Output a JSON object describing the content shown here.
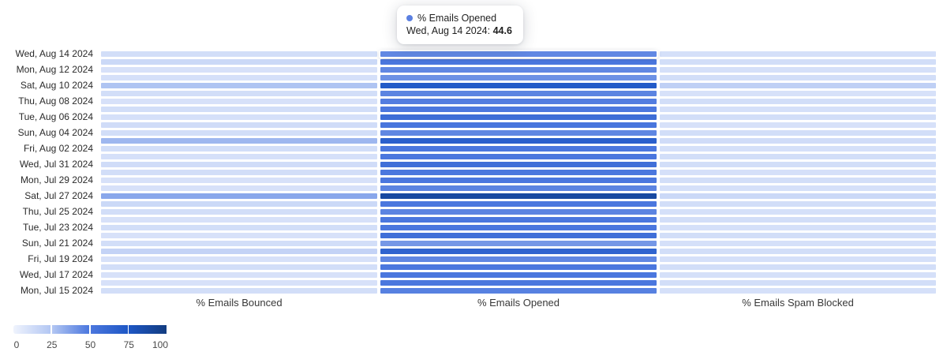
{
  "tooltip": {
    "series_label": "% Emails Opened",
    "row_label": "Wed, Aug 14 2024: ",
    "value": "44.6",
    "dot_color": "#5b80e1"
  },
  "chart_data": {
    "type": "heatmap",
    "title": "",
    "columns": [
      "% Emails Bounced",
      "% Emails Opened",
      "% Emails Spam Blocked"
    ],
    "rows": [
      {
        "label": "Wed, Aug 14 2024",
        "values": [
          12,
          44.6,
          11
        ]
      },
      {
        "label": "",
        "values": [
          15,
          50,
          12
        ]
      },
      {
        "label": "Mon, Aug 12 2024",
        "values": [
          10,
          45,
          11
        ]
      },
      {
        "label": "",
        "values": [
          11,
          42,
          12
        ]
      },
      {
        "label": "Sat, Aug 10 2024",
        "values": [
          26,
          72,
          20
        ]
      },
      {
        "label": "",
        "values": [
          12,
          46,
          10
        ]
      },
      {
        "label": "Thu, Aug 08 2024",
        "values": [
          10,
          48,
          12
        ]
      },
      {
        "label": "",
        "values": [
          12,
          50,
          11
        ]
      },
      {
        "label": "Tue, Aug 06 2024",
        "values": [
          11,
          58,
          12
        ]
      },
      {
        "label": "",
        "values": [
          13,
          51,
          10
        ]
      },
      {
        "label": "Sun, Aug 04 2024",
        "values": [
          12,
          45,
          12
        ]
      },
      {
        "label": "",
        "values": [
          30,
          68,
          13
        ]
      },
      {
        "label": "Fri, Aug 02 2024",
        "values": [
          12,
          50,
          11
        ]
      },
      {
        "label": "",
        "values": [
          11,
          50,
          12
        ]
      },
      {
        "label": "Wed, Jul 31 2024",
        "values": [
          13,
          56,
          12
        ]
      },
      {
        "label": "",
        "values": [
          12,
          50,
          11
        ]
      },
      {
        "label": "Mon, Jul 29 2024",
        "values": [
          10,
          50,
          12
        ]
      },
      {
        "label": "",
        "values": [
          10,
          46,
          11
        ]
      },
      {
        "label": "Sat, Jul 27 2024",
        "values": [
          35,
          88,
          15
        ]
      },
      {
        "label": "",
        "values": [
          15,
          50,
          12
        ]
      },
      {
        "label": "Thu, Jul 25 2024",
        "values": [
          12,
          46,
          11
        ]
      },
      {
        "label": "",
        "values": [
          10,
          50,
          12
        ]
      },
      {
        "label": "Tue, Jul 23 2024",
        "values": [
          12,
          50,
          11
        ]
      },
      {
        "label": "",
        "values": [
          10,
          56,
          12
        ]
      },
      {
        "label": "Sun, Jul 21 2024",
        "values": [
          12,
          40,
          11
        ]
      },
      {
        "label": "",
        "values": [
          18,
          65,
          12
        ]
      },
      {
        "label": "Fri, Jul 19 2024",
        "values": [
          10,
          45,
          11
        ]
      },
      {
        "label": "",
        "values": [
          12,
          50,
          12
        ]
      },
      {
        "label": "Wed, Jul 17 2024",
        "values": [
          10,
          50,
          11
        ]
      },
      {
        "label": "",
        "values": [
          10,
          50,
          12
        ]
      },
      {
        "label": "Mon, Jul 15 2024",
        "values": [
          12,
          47,
          11
        ]
      }
    ],
    "hover": {
      "row": 0,
      "col": 1,
      "value": "44.6"
    },
    "colorscale": {
      "domain": [
        0,
        100
      ],
      "ticks": [
        "0",
        "25",
        "50",
        "75",
        "100"
      ],
      "tick_values": [
        0,
        25,
        50,
        75,
        100
      ],
      "stops": [
        {
          "value": 0,
          "color": "#eff3fd"
        },
        {
          "value": 25,
          "color": "#b3c7f3"
        },
        {
          "value": 50,
          "color": "#4b77de"
        },
        {
          "value": 75,
          "color": "#1e57c5"
        },
        {
          "value": 100,
          "color": "#123c80"
        }
      ],
      "legend_position": "bottom-left"
    }
  }
}
